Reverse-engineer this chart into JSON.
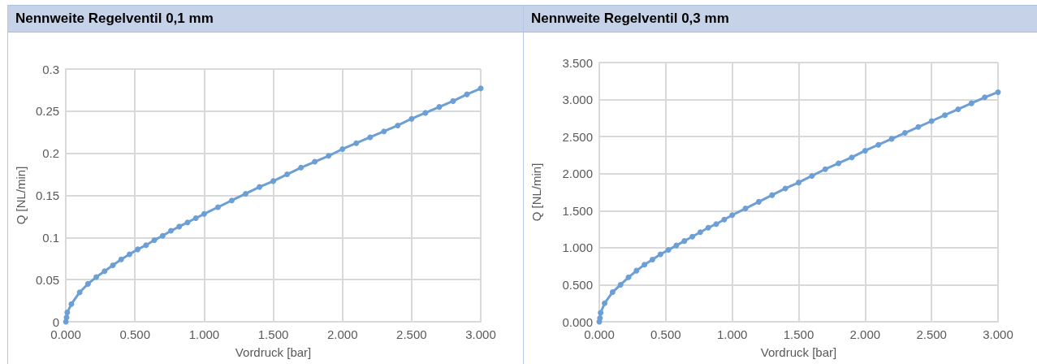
{
  "chart_data": [
    {
      "type": "line",
      "title": "Nennweite Regelventil 0,1 mm",
      "xlabel": "Vordruck [bar]",
      "ylabel": "Q [NL/min]",
      "marker": "circle",
      "grid": true,
      "x": [
        0,
        0.005,
        0.01,
        0.04,
        0.1,
        0.16,
        0.22,
        0.28,
        0.34,
        0.4,
        0.46,
        0.52,
        0.58,
        0.64,
        0.7,
        0.76,
        0.82,
        0.88,
        0.94,
        1.0,
        1.1,
        1.2,
        1.3,
        1.4,
        1.5,
        1.6,
        1.7,
        1.8,
        1.9,
        2.0,
        2.1,
        2.2,
        2.3,
        2.4,
        2.5,
        2.6,
        2.7,
        2.8,
        2.9,
        3.0
      ],
      "series": [
        {
          "color": "#6b9fd6",
          "values": [
            0,
            0.005,
            0.011,
            0.021,
            0.035,
            0.045,
            0.053,
            0.06,
            0.067,
            0.074,
            0.08,
            0.086,
            0.091,
            0.097,
            0.102,
            0.108,
            0.113,
            0.118,
            0.123,
            0.128,
            0.136,
            0.144,
            0.152,
            0.16,
            0.167,
            0.175,
            0.183,
            0.19,
            0.197,
            0.205,
            0.212,
            0.219,
            0.226,
            0.233,
            0.241,
            0.248,
            0.255,
            0.262,
            0.27,
            0.277
          ]
        }
      ],
      "xlim": [
        0,
        3
      ],
      "xticks": [
        {
          "value": 0,
          "label": "0.000"
        },
        {
          "value": 0.5,
          "label": "0.500"
        },
        {
          "value": 1,
          "label": "1.000"
        },
        {
          "value": 1.5,
          "label": "1.500"
        },
        {
          "value": 2,
          "label": "2.000"
        },
        {
          "value": 2.5,
          "label": "2.500"
        },
        {
          "value": 3,
          "label": "3.000"
        }
      ],
      "ylim": [
        0,
        0.3
      ],
      "yticks": [
        0,
        0.05,
        0.1,
        0.15,
        0.2,
        0.25,
        0.3
      ]
    },
    {
      "type": "line",
      "title": "Nennweite Regelventil 0,3 mm",
      "xlabel": "Vordruck [bar]",
      "ylabel": "Q [NL/min]",
      "marker": "circle",
      "grid": true,
      "x": [
        0,
        0.005,
        0.01,
        0.04,
        0.1,
        0.16,
        0.22,
        0.28,
        0.34,
        0.4,
        0.46,
        0.52,
        0.58,
        0.64,
        0.7,
        0.76,
        0.82,
        0.88,
        0.94,
        1.0,
        1.1,
        1.2,
        1.3,
        1.4,
        1.5,
        1.6,
        1.7,
        1.8,
        1.9,
        2.0,
        2.1,
        2.2,
        2.3,
        2.4,
        2.5,
        2.6,
        2.7,
        2.8,
        2.9,
        3.0
      ],
      "series": [
        {
          "color": "#6b9fd6",
          "values": [
            0,
            0.05,
            0.12,
            0.25,
            0.4,
            0.5,
            0.6,
            0.69,
            0.77,
            0.84,
            0.91,
            0.97,
            1.03,
            1.09,
            1.15,
            1.21,
            1.27,
            1.32,
            1.38,
            1.44,
            1.53,
            1.62,
            1.71,
            1.8,
            1.88,
            1.97,
            2.06,
            2.14,
            2.22,
            2.31,
            2.39,
            2.47,
            2.55,
            2.63,
            2.71,
            2.79,
            2.87,
            2.95,
            3.03,
            3.1
          ]
        }
      ],
      "xlim": [
        0,
        3
      ],
      "xticks": [
        {
          "value": 0,
          "label": "0.000"
        },
        {
          "value": 0.5,
          "label": "0.500"
        },
        {
          "value": 1,
          "label": "1.000"
        },
        {
          "value": 1.5,
          "label": "1.500"
        },
        {
          "value": 2,
          "label": "2.000"
        },
        {
          "value": 2.5,
          "label": "2.500"
        },
        {
          "value": 3,
          "label": "3.000"
        }
      ],
      "ylim": [
        0,
        3.5
      ],
      "yticks": [
        {
          "value": 0,
          "label": "0.000"
        },
        {
          "value": 0.5,
          "label": "0.500"
        },
        {
          "value": 1,
          "label": "1.000"
        },
        {
          "value": 1.5,
          "label": "1.500"
        },
        {
          "value": 2,
          "label": "2.000"
        },
        {
          "value": 2.5,
          "label": "2.500"
        },
        {
          "value": 3,
          "label": "3.000"
        },
        {
          "value": 3.5,
          "label": "3.500"
        }
      ]
    }
  ]
}
